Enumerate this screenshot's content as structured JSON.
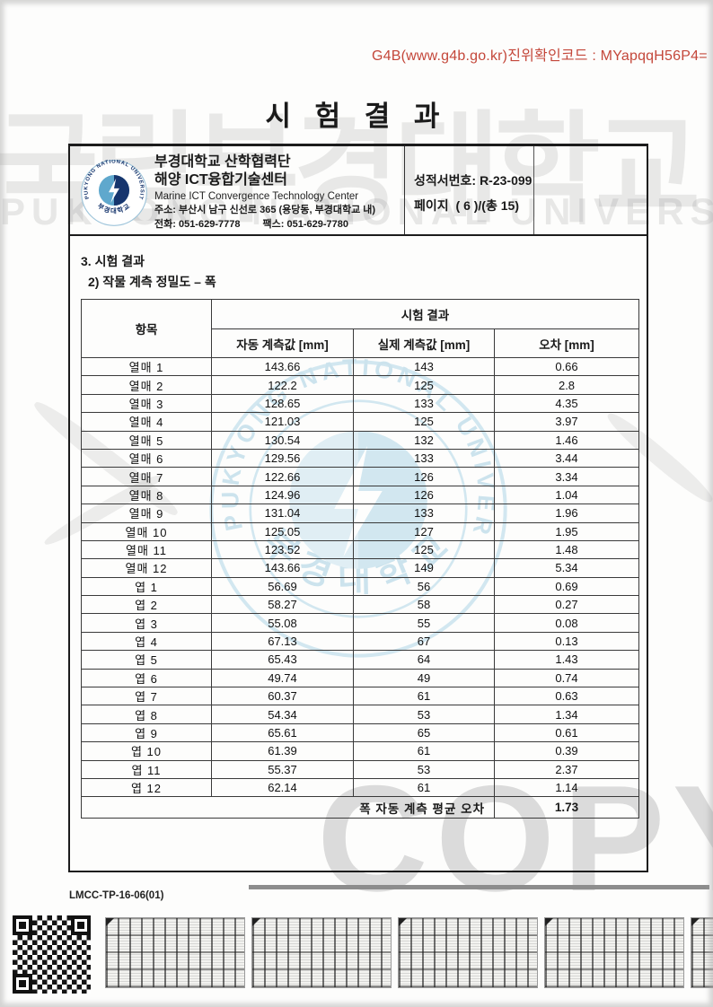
{
  "page": {
    "verification_code": "G4B(www.g4b.go.kr)진위확인코드 : MYapqqH56P4=",
    "title": "시 험 결 과",
    "doc_code": "LMCC-TP-16-06(01)"
  },
  "watermarks": {
    "top_korean": "국립부경대학교",
    "top_english": "PUKYONG NATIONAL UNIVERSITY",
    "center_ring_text": "PUKYONG NATIONAL UNIVERSITY",
    "center_korean": "부경대학교",
    "copy_text": "COPY"
  },
  "org": {
    "name_line1": "부경대학교 산학협력단",
    "name_line2": "해양 ICT융합기술센터",
    "name_en": "Marine ICT Convergence Technology Center",
    "address": "주소: 부산시 남구 신선로 365 (용당동, 부경대학교 내)",
    "phone": "전화: 051-629-7778",
    "fax": "팩스: 051-629-7780",
    "logo_text_ring": "PUKYONG NATIONAL UNIVERSITY",
    "logo_text_bottom": "부경대학교"
  },
  "report": {
    "number_label": "성적서번호:",
    "number": "R-23-099",
    "page_label": "페이지",
    "page_value": "( 6 )/(총 15)"
  },
  "sections": {
    "heading1": "3. 시험 결과",
    "heading2": "2) 작물 계측 정밀도 – 폭"
  },
  "table": {
    "item_header": "항목",
    "group_header": "시험 결과",
    "columns": [
      "자동 계측값 [mm]",
      "실제 계측값 [mm]",
      "오차 [mm]"
    ],
    "rows": [
      [
        "열매 1",
        "143.66",
        "143",
        "0.66"
      ],
      [
        "열매 2",
        "122.2",
        "125",
        "2.8"
      ],
      [
        "열매 3",
        "128.65",
        "133",
        "4.35"
      ],
      [
        "열매 4",
        "121.03",
        "125",
        "3.97"
      ],
      [
        "열매 5",
        "130.54",
        "132",
        "1.46"
      ],
      [
        "열매 6",
        "129.56",
        "133",
        "3.44"
      ],
      [
        "열매 7",
        "122.66",
        "126",
        "3.34"
      ],
      [
        "열매 8",
        "124.96",
        "126",
        "1.04"
      ],
      [
        "열매 9",
        "131.04",
        "133",
        "1.96"
      ],
      [
        "열매 10",
        "125.05",
        "127",
        "1.95"
      ],
      [
        "열매 11",
        "123.52",
        "125",
        "1.48"
      ],
      [
        "열매 12",
        "143.66",
        "149",
        "5.34"
      ],
      [
        "엽 1",
        "56.69",
        "56",
        "0.69"
      ],
      [
        "엽 2",
        "58.27",
        "58",
        "0.27"
      ],
      [
        "엽 3",
        "55.08",
        "55",
        "0.08"
      ],
      [
        "엽 4",
        "67.13",
        "67",
        "0.13"
      ],
      [
        "엽 5",
        "65.43",
        "64",
        "1.43"
      ],
      [
        "엽 6",
        "49.74",
        "49",
        "0.74"
      ],
      [
        "엽 7",
        "60.37",
        "61",
        "0.63"
      ],
      [
        "엽 8",
        "54.34",
        "53",
        "1.34"
      ],
      [
        "엽 9",
        "65.61",
        "65",
        "0.61"
      ],
      [
        "엽 10",
        "61.39",
        "61",
        "0.39"
      ],
      [
        "엽 11",
        "55.37",
        "53",
        "2.37"
      ],
      [
        "엽 12",
        "62.14",
        "61",
        "1.14"
      ]
    ],
    "summary_label": "폭 자동 계측 평균 오차",
    "summary_value": "1.73"
  },
  "colors": {
    "verification_red": "#c4473a",
    "logo_navy": "#16356d",
    "logo_lightblue": "#5fa8cd",
    "watermark_blue": "#a9d3e5"
  }
}
